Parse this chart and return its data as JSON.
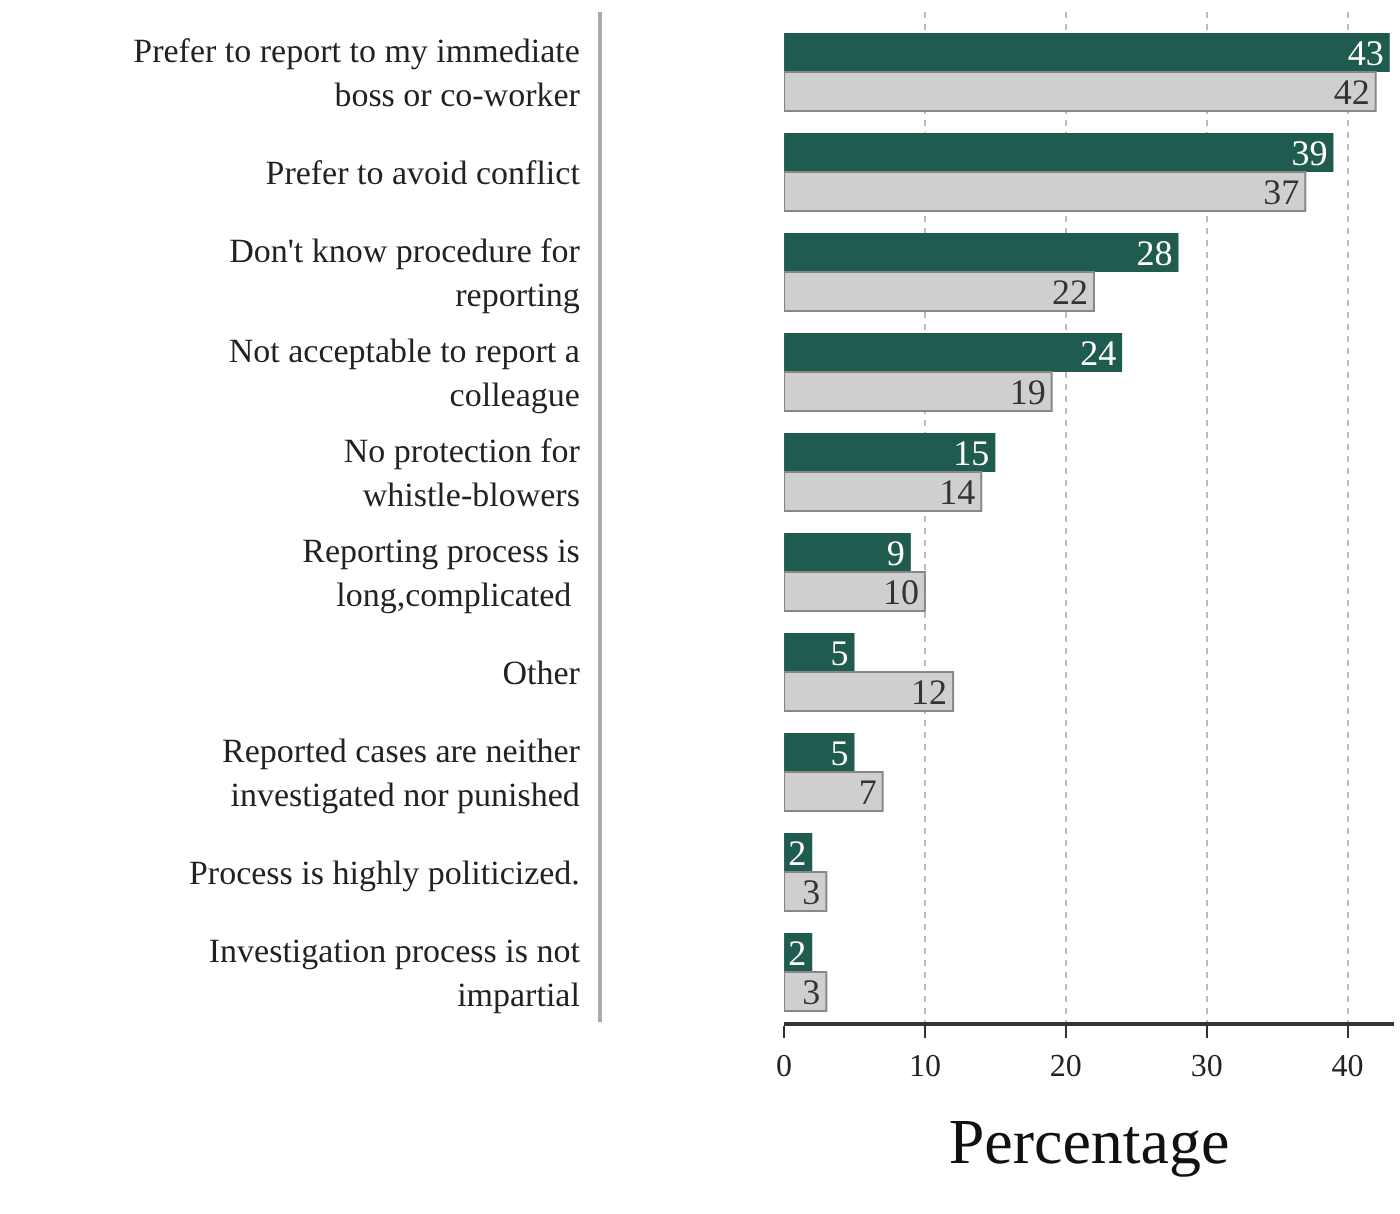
{
  "chart_data": {
    "type": "bar",
    "orientation": "horizontal",
    "xlabel": "Percentage",
    "categories": [
      "Prefer to report to my immediate\nboss or co-worker",
      "Prefer to avoid conflict",
      "Don't know procedure for\nreporting",
      "Not acceptable to report a\ncolleague",
      "No protection for\nwhistle-blowers",
      "Reporting process is\nlong,complicated ",
      "Other",
      "Reported cases are neither\ninvestigated nor punished",
      "Process is highly politicized.",
      "Investigation process is not\nimpartial"
    ],
    "series": [
      {
        "color": "#1f5c4f",
        "values": [
          43,
          39,
          28,
          24,
          15,
          9,
          5,
          5,
          2,
          2
        ]
      },
      {
        "color": "#cfcfcf",
        "values": [
          42,
          37,
          22,
          19,
          14,
          10,
          12,
          7,
          3,
          3
        ]
      }
    ],
    "xlim": [
      0,
      43.3
    ],
    "xticks": [
      0,
      10,
      20,
      30,
      40
    ],
    "grid": "x",
    "data_labels": true
  }
}
